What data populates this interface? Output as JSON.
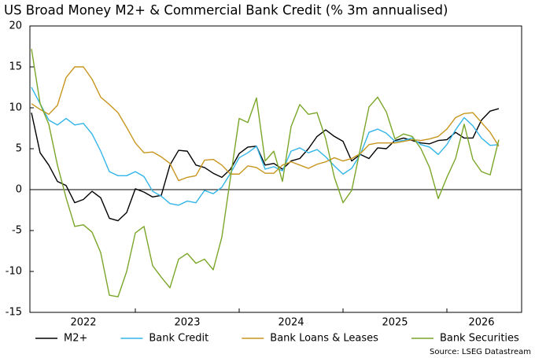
{
  "chart_data": {
    "type": "line",
    "title": "US Broad Money M2+ & Commercial Bank Credit (% 3m annualised)",
    "source": "Source: LSEG Datastream",
    "categories": [
      null,
      null,
      null,
      null,
      null,
      null,
      "2022",
      null,
      null,
      null,
      null,
      null,
      null,
      null,
      null,
      null,
      null,
      null,
      "2023",
      null,
      null,
      null,
      null,
      null,
      null,
      null,
      null,
      null,
      null,
      null,
      "2024",
      null,
      null,
      null,
      null,
      null,
      null,
      null,
      null,
      null,
      null,
      null,
      "2025",
      null,
      null,
      null,
      null,
      null,
      null,
      null,
      null,
      null,
      "2026",
      null,
      null
    ],
    "ylim": [
      -15,
      20
    ],
    "yticks": [
      -15,
      -10,
      -5,
      0,
      5,
      10,
      15,
      20
    ],
    "legend": "bottom",
    "series": [
      {
        "name": "M2+",
        "color": "#000000",
        "values": [
          9.4,
          4.5,
          3.0,
          1.0,
          0.5,
          -1.6,
          -1.2,
          -0.2,
          -1.0,
          -3.5,
          -3.8,
          -2.8,
          0.1,
          -0.3,
          -0.9,
          -0.7,
          3.0,
          4.8,
          4.7,
          3.0,
          2.7,
          2.0,
          1.5,
          2.5,
          4.4,
          5.2,
          5.3,
          3.0,
          3.2,
          2.5,
          3.5,
          3.8,
          5.0,
          6.5,
          7.3,
          6.5,
          5.9,
          3.5,
          4.3,
          3.8,
          5.1,
          5.0,
          6.0,
          6.3,
          6.0,
          5.7,
          5.6,
          6.0,
          6.1,
          7.0,
          6.3,
          6.3,
          8.5,
          9.6,
          9.9
        ]
      },
      {
        "name": "Bank Credit",
        "color": "#33b5e8",
        "values": [
          12.5,
          10.5,
          8.5,
          7.9,
          8.7,
          7.9,
          8.1,
          6.8,
          4.7,
          2.2,
          1.7,
          1.7,
          2.2,
          1.6,
          -0.2,
          -0.8,
          -1.7,
          -1.9,
          -1.4,
          -1.6,
          -0.1,
          -0.5,
          0.3,
          2.0,
          3.9,
          4.5,
          5.3,
          2.5,
          2.8,
          2.3,
          4.7,
          5.1,
          4.5,
          4.9,
          4.0,
          2.9,
          1.9,
          2.6,
          4.3,
          7.0,
          7.4,
          6.9,
          5.9,
          6.0,
          6.3,
          5.5,
          5.2,
          4.3,
          5.5,
          7.3,
          8.8,
          7.8,
          6.3,
          5.4,
          5.5
        ]
      },
      {
        "name": "Bank Loans & Leases",
        "color": "#c8961e",
        "values": [
          10.5,
          9.8,
          9.2,
          10.3,
          13.7,
          15.0,
          15.0,
          13.5,
          11.3,
          10.4,
          9.4,
          7.6,
          5.7,
          4.5,
          4.6,
          4.0,
          3.2,
          1.1,
          1.5,
          1.7,
          3.6,
          3.7,
          3.0,
          1.9,
          1.9,
          2.9,
          2.7,
          2.0,
          2.0,
          3.0,
          3.4,
          3.0,
          2.6,
          3.1,
          3.4,
          3.9,
          3.5,
          3.8,
          4.4,
          5.5,
          5.7,
          5.7,
          5.7,
          5.9,
          6.1,
          6.0,
          6.2,
          6.5,
          7.4,
          8.8,
          9.3,
          9.4,
          8.2,
          7.0,
          5.3
        ]
      },
      {
        "name": "Bank Securities",
        "color": "#7aa629",
        "values": [
          17.2,
          10.5,
          8.0,
          3.0,
          -1.0,
          -4.5,
          -4.3,
          -5.2,
          -7.7,
          -12.9,
          -13.1,
          -10.0,
          -5.3,
          -4.5,
          -9.3,
          -10.7,
          -12.0,
          -8.5,
          -7.8,
          -9.0,
          -8.5,
          -9.8,
          -5.8,
          1.5,
          8.7,
          8.2,
          11.2,
          3.5,
          4.7,
          1.0,
          7.7,
          10.4,
          9.2,
          9.4,
          6.2,
          1.5,
          -1.6,
          -0.1,
          5.0,
          10.1,
          11.3,
          9.5,
          6.2,
          6.8,
          6.5,
          5.0,
          2.7,
          -1.1,
          1.5,
          3.8,
          8.0,
          3.7,
          2.2,
          1.8,
          6.1
        ]
      }
    ]
  }
}
